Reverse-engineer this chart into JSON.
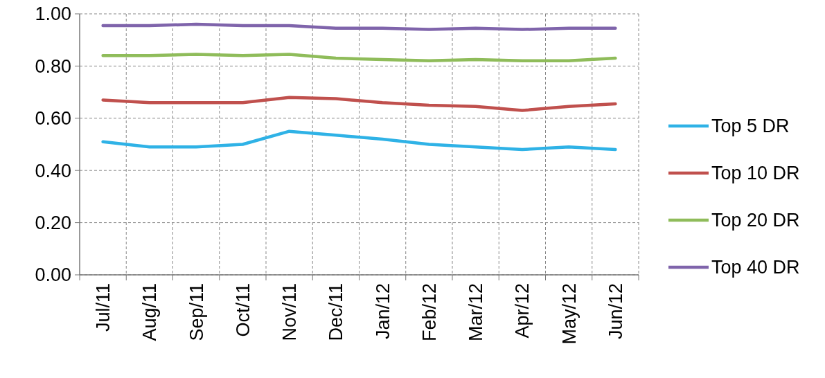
{
  "chart_data": {
    "type": "line",
    "categories": [
      "Jul/11",
      "Aug/11",
      "Sep/11",
      "Oct/11",
      "Nov/11",
      "Dec/11",
      "Jan/12",
      "Feb/12",
      "Mar/12",
      "Apr/12",
      "May/12",
      "Jun/12"
    ],
    "series": [
      {
        "name": "Top 5 DR",
        "color": "#2fb2e6",
        "values": [
          0.51,
          0.49,
          0.49,
          0.5,
          0.55,
          0.535,
          0.52,
          0.5,
          0.49,
          0.48,
          0.49,
          0.48
        ]
      },
      {
        "name": "Top 10 DR",
        "color": "#c0504d",
        "values": [
          0.67,
          0.66,
          0.66,
          0.66,
          0.68,
          0.675,
          0.66,
          0.65,
          0.645,
          0.63,
          0.645,
          0.655
        ]
      },
      {
        "name": "Top 20 DR",
        "color": "#8fbc5a",
        "values": [
          0.84,
          0.84,
          0.845,
          0.84,
          0.845,
          0.83,
          0.825,
          0.82,
          0.825,
          0.82,
          0.82,
          0.83
        ]
      },
      {
        "name": "Top 40 DR",
        "color": "#7f64ab",
        "values": [
          0.955,
          0.955,
          0.96,
          0.955,
          0.955,
          0.945,
          0.945,
          0.94,
          0.945,
          0.94,
          0.945,
          0.945
        ]
      }
    ],
    "ylim": [
      0,
      1
    ],
    "yticks": [
      {
        "value": 0,
        "label": "0.00"
      },
      {
        "value": 0.2,
        "label": "0.20"
      },
      {
        "value": 0.4,
        "label": "0.40"
      },
      {
        "value": 0.6,
        "label": "0.60"
      },
      {
        "value": 0.8,
        "label": "0.80"
      },
      {
        "value": 1,
        "label": "1.00"
      }
    ],
    "grid": true,
    "legend": "right",
    "marker": "none",
    "line_style": "solid"
  }
}
